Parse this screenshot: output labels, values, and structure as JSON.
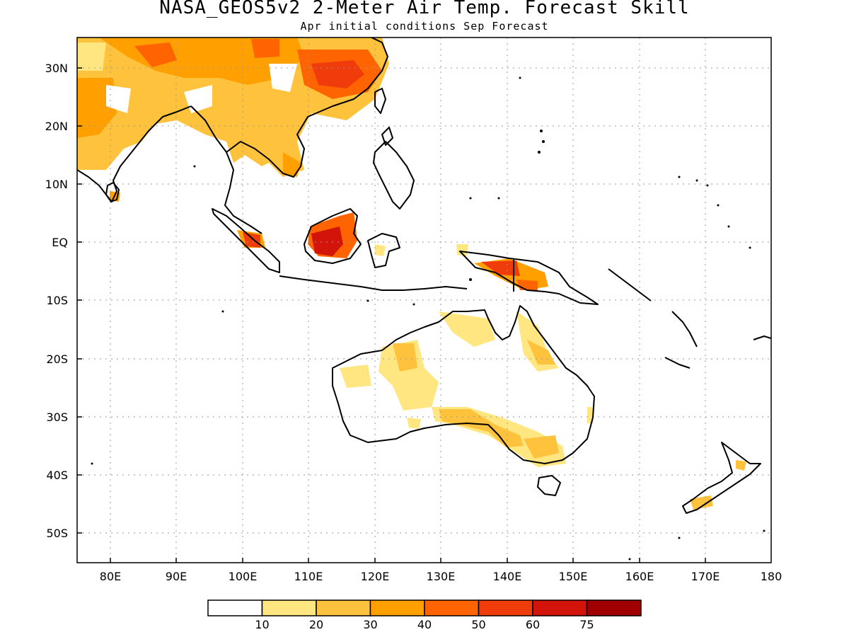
{
  "header": {
    "title": "NASA_GEOS5v2 2-Meter Air Temp. Forecast Skill",
    "subtitle": "Apr initial conditions  Sep Forecast"
  },
  "map": {
    "lon_range": [
      75,
      180
    ],
    "lat_range": [
      -55,
      35
    ],
    "lat_ticks": [
      "30N",
      "20N",
      "10N",
      "EQ",
      "10S",
      "20S",
      "30S",
      "40S",
      "50S"
    ],
    "lon_ticks": [
      "80E",
      "90E",
      "100E",
      "110E",
      "120E",
      "130E",
      "140E",
      "150E",
      "160E",
      "170E",
      "180"
    ],
    "grid": true
  },
  "colorbar": {
    "labels": [
      "10",
      "20",
      "30",
      "40",
      "50",
      "60",
      "75"
    ],
    "colors": [
      "#ffffff",
      "#ffe680",
      "#ffc23c",
      "#ffa000",
      "#ff6400",
      "#f03c0a",
      "#d2140a",
      "#a00000"
    ]
  }
}
